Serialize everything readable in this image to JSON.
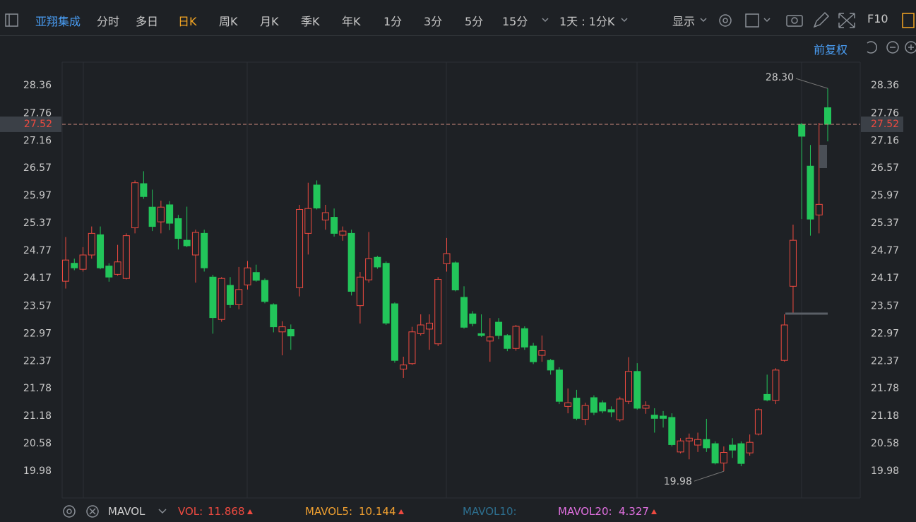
{
  "toolbar": {
    "stock": "亚翔集成",
    "periods": [
      "分时",
      "多日",
      "日K",
      "周K",
      "月K",
      "季K",
      "年K",
      "1分",
      "3分",
      "5分",
      "15分"
    ],
    "interval": "1天 : 1分K",
    "display": "显示",
    "f10": "F10",
    "adjust": "前复权"
  },
  "indicator_bar": {
    "name": "MAVOL",
    "vol_label": "VOL:",
    "vol": "11.868",
    "mavol5_label": "MAVOL5:",
    "mavol5": "10.144",
    "mavol10_label": "MAVOL10:",
    "mavol20_label": "MAVOL20:",
    "mavol20": "4.327"
  },
  "chart_data": {
    "type": "candlestick",
    "up_color": "#ee4a40",
    "down_color": "#22c55a",
    "ylim": [
      19.4,
      28.87
    ],
    "yticks": [
      28.36,
      27.76,
      27.16,
      26.57,
      25.97,
      25.37,
      24.77,
      24.17,
      23.57,
      22.97,
      22.37,
      21.78,
      21.18,
      20.58,
      19.98
    ],
    "last_price": {
      "value": 27.52,
      "label": "27.52"
    },
    "max_label": {
      "value": 28.3,
      "label": "28.30"
    },
    "min_label": {
      "value": 19.98,
      "label": "19.98"
    },
    "open": [
      24.11,
      24.5,
      24.37,
      24.68,
      25.12,
      24.44,
      24.26,
      24.17,
      25.27,
      26.23,
      25.72,
      25.4,
      25.77,
      25.47,
      25.0,
      24.68,
      25.15,
      24.2,
      23.28,
      24.02,
      23.6,
      24.03,
      24.3,
      24.13,
      23.6,
      23.01,
      23.06,
      23.97,
      25.15,
      26.2,
      25.44,
      25.5,
      25.11,
      25.15,
      23.58,
      24.14,
      24.63,
      24.5,
      23.62,
      22.2,
      22.32,
      22.97,
      23.07,
      22.75,
      24.49,
      24.51,
      23.76,
      23.4,
      22.97,
      22.81,
      23.22,
      22.93,
      22.65,
      23.08,
      22.7,
      22.5,
      22.39,
      22.18,
      21.39,
      21.57,
      21.11,
      21.58,
      21.47,
      21.32,
      21.1,
      21.5,
      22.15,
      21.35,
      21.2,
      21.18,
      21.15,
      20.4,
      20.64,
      20.55,
      20.67,
      20.58,
      20.16,
      20.55,
      20.58,
      20.38,
      20.79,
      21.65,
      21.52,
      22.39,
      24.0,
      27.52,
      26.61,
      25.55,
      27.88
    ],
    "high": [
      25.07,
      24.6,
      24.85,
      25.3,
      25.3,
      24.5,
      24.9,
      25.15,
      26.3,
      26.5,
      26.1,
      25.86,
      25.85,
      25.55,
      25.73,
      25.23,
      25.23,
      24.25,
      24.2,
      24.2,
      24.42,
      24.55,
      24.47,
      24.17,
      23.63,
      23.24,
      23.17,
      25.77,
      26.25,
      26.3,
      25.77,
      25.69,
      25.3,
      25.23,
      24.31,
      25.18,
      24.66,
      24.54,
      23.65,
      22.47,
      23.12,
      23.39,
      23.39,
      24.2,
      25.05,
      24.54,
      24.0,
      23.46,
      23.39,
      23.31,
      23.31,
      22.96,
      23.16,
      23.13,
      22.77,
      22.93,
      22.42,
      22.24,
      21.78,
      21.75,
      21.47,
      21.63,
      21.52,
      21.39,
      21.6,
      22.46,
      22.33,
      21.5,
      21.35,
      21.29,
      21.24,
      20.7,
      20.8,
      20.82,
      21.12,
      20.63,
      20.52,
      20.7,
      20.63,
      20.78,
      21.35,
      22.08,
      22.22,
      23.39,
      25.34,
      27.55,
      27.07,
      27.55,
      28.3
    ],
    "low": [
      23.95,
      24.35,
      24.32,
      24.6,
      24.37,
      24.1,
      24.23,
      24.15,
      25.15,
      25.9,
      25.2,
      25.15,
      25.22,
      24.8,
      24.85,
      24.08,
      24.32,
      22.97,
      23.23,
      23.53,
      23.5,
      23.93,
      24.1,
      23.63,
      23.0,
      22.5,
      22.62,
      23.78,
      24.69,
      25.67,
      25.23,
      25.08,
      24.99,
      23.8,
      23.19,
      24.08,
      24.38,
      23.16,
      22.34,
      22.01,
      22.29,
      22.93,
      22.62,
      22.7,
      24.32,
      23.89,
      23.08,
      23.13,
      22.9,
      22.36,
      22.85,
      22.59,
      22.6,
      22.62,
      22.31,
      22.36,
      22.08,
      21.44,
      21.24,
      21.09,
      20.98,
      21.2,
      21.24,
      21.16,
      21.06,
      21.44,
      21.32,
      21.23,
      20.82,
      20.93,
      20.52,
      20.37,
      20.24,
      20.4,
      20.4,
      20.13,
      19.98,
      20.27,
      20.09,
      20.32,
      20.76,
      21.5,
      21.44,
      22.36,
      23.39,
      25.46,
      25.1,
      25.15,
      27.15
    ],
    "close": [
      24.57,
      24.4,
      24.68,
      25.15,
      24.4,
      24.2,
      24.53,
      25.1,
      26.25,
      25.95,
      25.3,
      25.72,
      25.37,
      25.04,
      24.88,
      25.17,
      24.4,
      23.32,
      24.17,
      23.6,
      23.93,
      24.4,
      24.13,
      23.67,
      23.12,
      23.12,
      22.92,
      25.67,
      25.69,
      25.7,
      25.6,
      25.15,
      25.2,
      23.89,
      24.2,
      24.6,
      24.42,
      23.2,
      22.39,
      22.29,
      23.01,
      23.16,
      23.2,
      24.15,
      24.71,
      23.92,
      23.11,
      23.19,
      22.93,
      22.9,
      22.93,
      22.65,
      23.13,
      22.68,
      22.36,
      22.6,
      22.18,
      21.5,
      21.47,
      21.13,
      21.41,
      21.26,
      21.29,
      21.27,
      21.55,
      22.15,
      21.35,
      21.41,
      21.13,
      21.13,
      20.56,
      20.64,
      20.7,
      20.67,
      20.49,
      20.16,
      20.39,
      20.44,
      20.15,
      20.61,
      21.32,
      21.53,
      22.18,
      23.16,
      25.0,
      27.26,
      25.46,
      25.78,
      27.52
    ]
  }
}
